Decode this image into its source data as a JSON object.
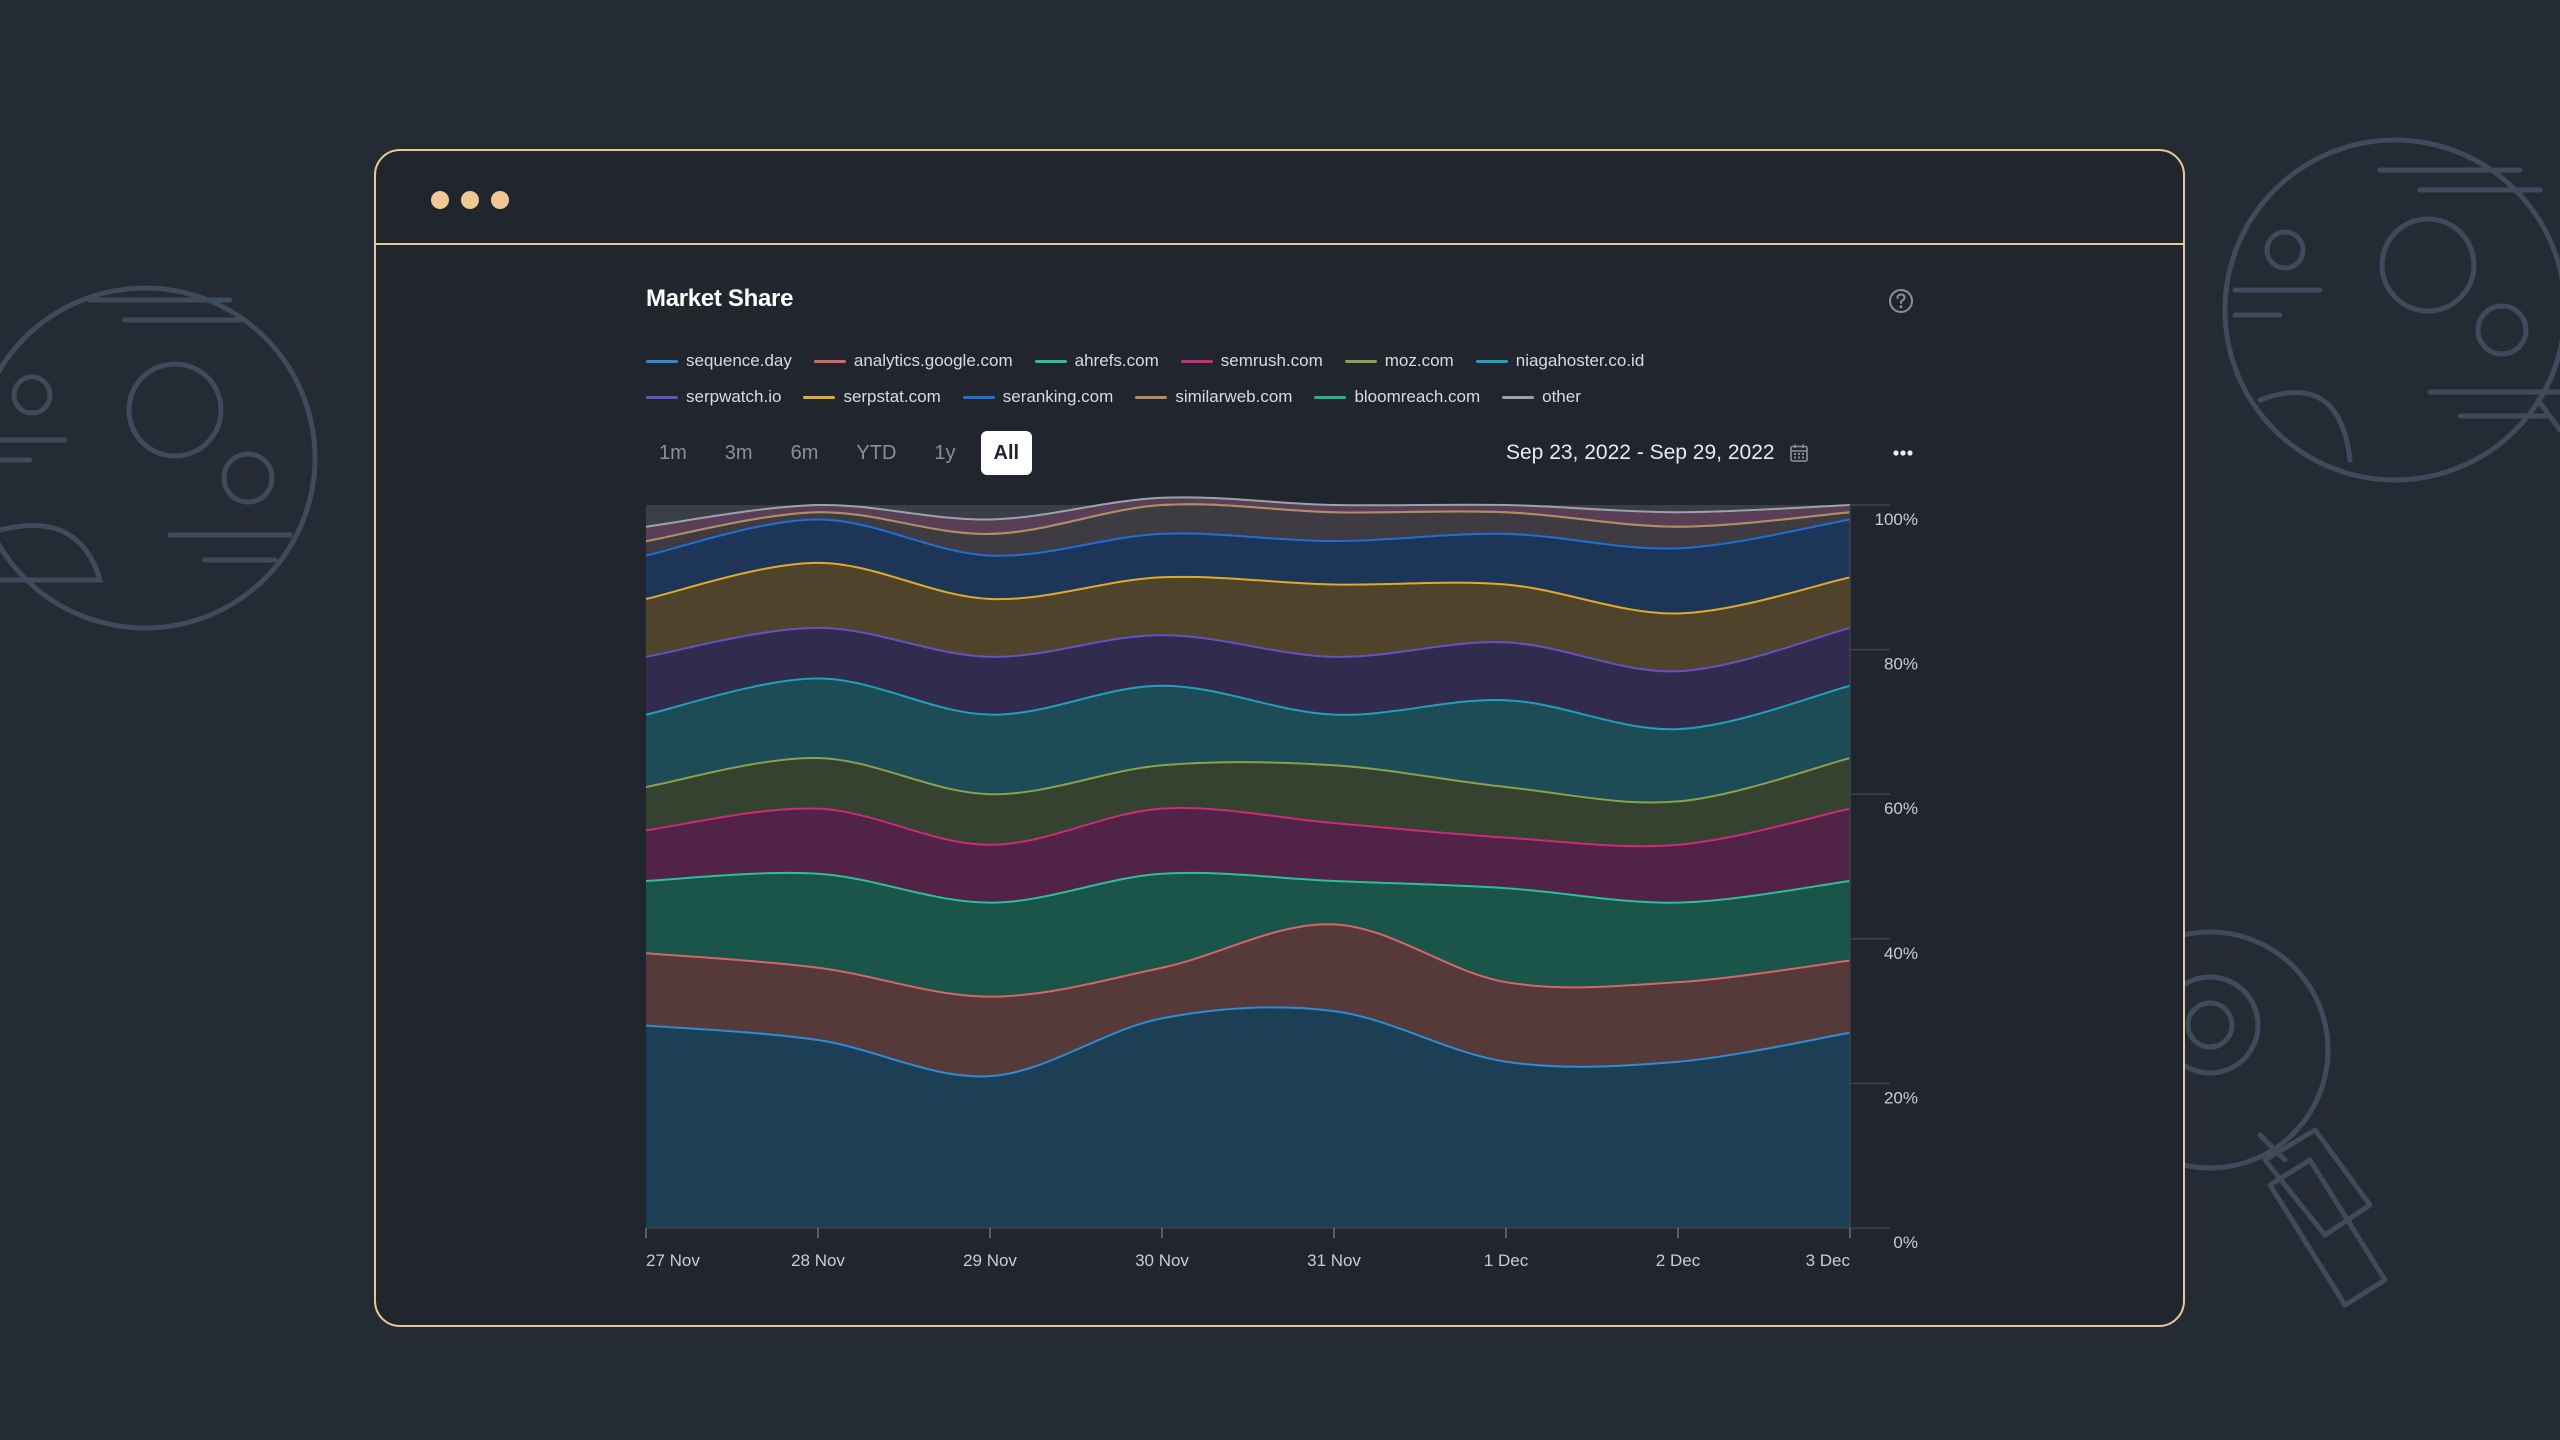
{
  "window": {
    "dots": [
      "dot-1",
      "dot-2",
      "dot-3"
    ]
  },
  "panel": {
    "title": "Market Share",
    "help_icon": "question-circle-icon",
    "more_icon": "more-horizontal-icon",
    "calendar_icon": "calendar-icon",
    "date_range": "Sep 23, 2022 - Sep 29, 2022",
    "ranges": [
      {
        "label": "1m",
        "active": false
      },
      {
        "label": "3m",
        "active": false
      },
      {
        "label": "6m",
        "active": false
      },
      {
        "label": "YTD",
        "active": false
      },
      {
        "label": "1y",
        "active": false
      },
      {
        "label": "All",
        "active": true
      }
    ]
  },
  "colors": {
    "page_bg": "#252b35",
    "window_border": "#e5c99b",
    "window_bg": "#21262e",
    "dots": "#efc797"
  },
  "chart_data": {
    "type": "area",
    "stacked": true,
    "x": [
      "27 Nov",
      "28 Nov",
      "29 Nov",
      "30 Nov",
      "31 Nov",
      "1 Dec",
      "2 Dec",
      "3 Dec"
    ],
    "ylim": [
      0,
      100
    ],
    "yticks": [
      "0%",
      "20%",
      "40%",
      "60%",
      "80%",
      "100%"
    ],
    "grid": true,
    "legend_position": "top-left",
    "series": [
      {
        "name": "sequence.day",
        "color": "#2e8bd6",
        "fill": "#1c3f55",
        "values": [
          28,
          26,
          21,
          29,
          30,
          23,
          23,
          27
        ]
      },
      {
        "name": "analytics.google.com",
        "color": "#d4656b",
        "fill": "#553a39",
        "values": [
          10,
          10,
          11,
          7,
          12,
          11,
          11,
          10
        ]
      },
      {
        "name": "ahrefs.com",
        "color": "#2abf9e",
        "fill": "#1b5449",
        "values": [
          10,
          13,
          13,
          13,
          6,
          13,
          11,
          11
        ]
      },
      {
        "name": "semrush.com",
        "color": "#cc2a7c",
        "fill": "#512346",
        "values": [
          7,
          9,
          8,
          9,
          8,
          7,
          8,
          10
        ]
      },
      {
        "name": "moz.com",
        "color": "#8ba14b",
        "fill": "#35422f",
        "values": [
          6,
          7,
          7,
          6,
          8,
          7,
          6,
          7
        ]
      },
      {
        "name": "niagahoster.co.id",
        "color": "#1fa0bd",
        "fill": "#1d4b56",
        "values": [
          10,
          11,
          11,
          11,
          7,
          12,
          10,
          10
        ]
      },
      {
        "name": "serpwatch.io",
        "color": "#6550c6",
        "fill": "#312b4d",
        "values": [
          8,
          7,
          8,
          7,
          8,
          8,
          8,
          8
        ]
      },
      {
        "name": "serpstat.com",
        "color": "#e0aa2c",
        "fill": "#50432c",
        "values": [
          8,
          9,
          8,
          8,
          10,
          8,
          8,
          7
        ]
      },
      {
        "name": "seranking.com",
        "color": "#1e6fd6",
        "fill": "#1d3556",
        "values": [
          6,
          6,
          6,
          6,
          6,
          7,
          9,
          8
        ]
      },
      {
        "name": "similarweb.com",
        "color": "#b98a5e",
        "fill": "#3f3b43",
        "values": [
          2,
          1,
          3,
          4,
          4,
          3,
          3,
          1
        ]
      },
      {
        "name": "bloomreach.com",
        "color": "#1db58c",
        "fill": "#3a3d48",
        "values": [
          0,
          0,
          0,
          0,
          0,
          0,
          0,
          0
        ]
      },
      {
        "name": "other",
        "color": "#9da2aa",
        "fill": "#5a3e57",
        "values": [
          2,
          1,
          2,
          1,
          1,
          1,
          2,
          1
        ]
      }
    ]
  }
}
